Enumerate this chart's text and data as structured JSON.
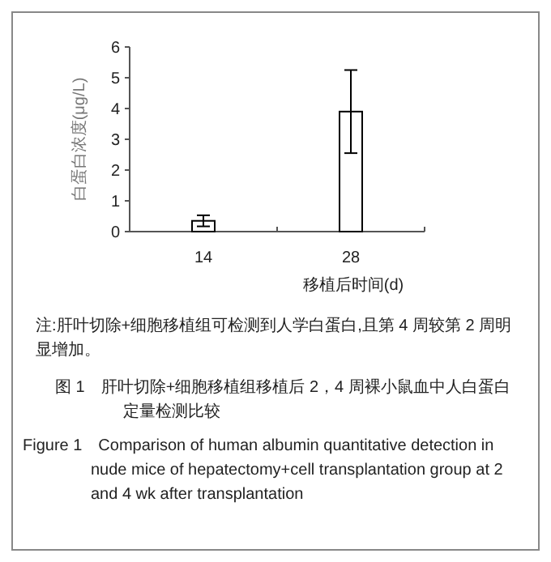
{
  "chart_data": {
    "type": "bar",
    "ylabel": "白蛋白浓度(μg/L)",
    "xlabel": "移植后时间(d)",
    "categories": [
      "14",
      "28"
    ],
    "series": [
      {
        "color": "#ffffff",
        "values": [
          0.35,
          3.9
        ],
        "errors": [
          0.18,
          1.35
        ]
      }
    ],
    "ylim": [
      0,
      6
    ],
    "yticks": [
      0,
      1,
      2,
      3,
      4,
      5,
      6
    ],
    "grid": false,
    "annotations": [
      "注:肝叶切除+细胞移植组可检测到人学白蛋白,且第 4 周较第 2 周明显增加。",
      "图 1　肝叶切除+细胞移植组移植后 2，4 周裸小鼠血中人白蛋白定量检测比较",
      "Figure 1　Comparison of human albumin quantitative detection in nude mice of hepatectomy+cell transplantation group at 2 and 4 wk after transplantation"
    ]
  }
}
